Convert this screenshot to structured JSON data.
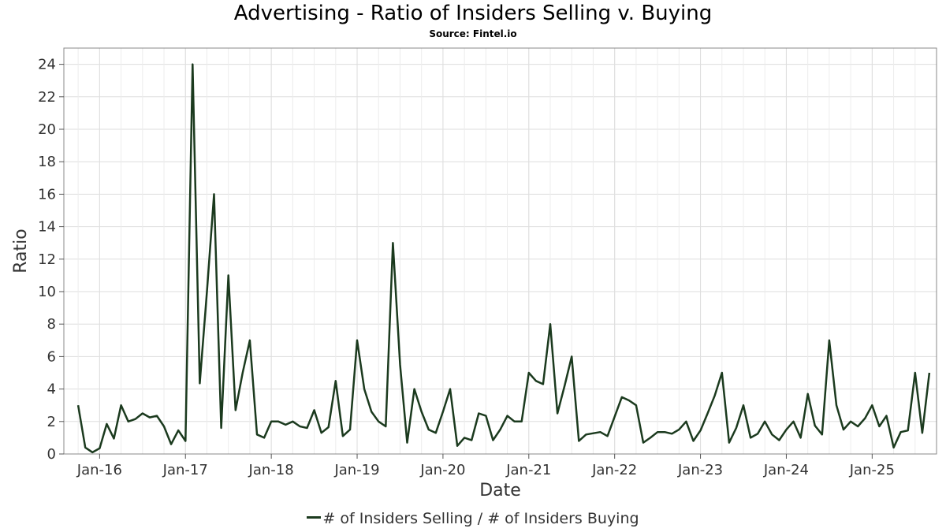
{
  "title": "Advertising - Ratio of Insiders Selling v. Buying",
  "subtitle": "Source: Fintel.io",
  "colors": {
    "line": "#1b3a1e",
    "grid": "#dddddd",
    "frame": "#888888"
  },
  "chart_data": {
    "type": "line",
    "xlabel": "Date",
    "ylabel": "Ratio",
    "x_tick_labels": [
      "Jan-16",
      "Jan-17",
      "Jan-18",
      "Jan-19",
      "Jan-20",
      "Jan-21",
      "Jan-22",
      "Jan-23",
      "Jan-24",
      "Jan-25"
    ],
    "x_ticks": [
      "2016-01",
      "2017-01",
      "2018-01",
      "2019-01",
      "2020-01",
      "2021-01",
      "2022-01",
      "2023-01",
      "2024-01",
      "2025-01"
    ],
    "y_ticks": [
      0,
      2,
      4,
      6,
      8,
      10,
      12,
      14,
      16,
      18,
      20,
      22,
      24
    ],
    "ylim": [
      0,
      25
    ],
    "xlim": [
      "2015-08",
      "2025-10"
    ],
    "grid": true,
    "legend_position": "bottom-center",
    "series": [
      {
        "name": "# of Insiders Selling / # of Insiders Buying",
        "points": [
          [
            "2015-10",
            3.0
          ],
          [
            "2015-11",
            0.4
          ],
          [
            "2015-12",
            0.1
          ],
          [
            "2016-01",
            0.35
          ],
          [
            "2016-02",
            1.85
          ],
          [
            "2016-03",
            0.95
          ],
          [
            "2016-04",
            3.0
          ],
          [
            "2016-05",
            2.0
          ],
          [
            "2016-06",
            2.15
          ],
          [
            "2016-07",
            2.5
          ],
          [
            "2016-08",
            2.25
          ],
          [
            "2016-09",
            2.35
          ],
          [
            "2016-10",
            1.7
          ],
          [
            "2016-11",
            0.6
          ],
          [
            "2016-12",
            1.45
          ],
          [
            "2017-01",
            0.8
          ],
          [
            "2017-02",
            24.0
          ],
          [
            "2017-03",
            4.35
          ],
          [
            "2017-04",
            10.0
          ],
          [
            "2017-05",
            16.0
          ],
          [
            "2017-06",
            1.6
          ],
          [
            "2017-07",
            11.0
          ],
          [
            "2017-08",
            2.7
          ],
          [
            "2017-09",
            5.0
          ],
          [
            "2017-10",
            7.0
          ],
          [
            "2017-11",
            1.2
          ],
          [
            "2017-12",
            1.0
          ],
          [
            "2018-01",
            2.0
          ],
          [
            "2018-02",
            2.0
          ],
          [
            "2018-03",
            1.8
          ],
          [
            "2018-04",
            2.0
          ],
          [
            "2018-05",
            1.7
          ],
          [
            "2018-06",
            1.6
          ],
          [
            "2018-07",
            2.7
          ],
          [
            "2018-08",
            1.3
          ],
          [
            "2018-09",
            1.65
          ],
          [
            "2018-10",
            4.5
          ],
          [
            "2018-11",
            1.1
          ],
          [
            "2018-12",
            1.5
          ],
          [
            "2019-01",
            7.0
          ],
          [
            "2019-02",
            4.0
          ],
          [
            "2019-03",
            2.6
          ],
          [
            "2019-04",
            2.0
          ],
          [
            "2019-05",
            1.7
          ],
          [
            "2019-06",
            13.0
          ],
          [
            "2019-07",
            5.5
          ],
          [
            "2019-08",
            0.7
          ],
          [
            "2019-09",
            4.0
          ],
          [
            "2019-10",
            2.6
          ],
          [
            "2019-11",
            1.5
          ],
          [
            "2019-12",
            1.3
          ],
          [
            "2020-01",
            2.6
          ],
          [
            "2020-02",
            4.0
          ],
          [
            "2020-03",
            0.5
          ],
          [
            "2020-04",
            1.0
          ],
          [
            "2020-05",
            0.85
          ],
          [
            "2020-06",
            2.5
          ],
          [
            "2020-07",
            2.35
          ],
          [
            "2020-08",
            0.85
          ],
          [
            "2020-09",
            1.5
          ],
          [
            "2020-10",
            2.35
          ],
          [
            "2020-11",
            2.0
          ],
          [
            "2020-12",
            2.0
          ],
          [
            "2021-01",
            5.0
          ],
          [
            "2021-02",
            4.5
          ],
          [
            "2021-03",
            4.3
          ],
          [
            "2021-04",
            8.0
          ],
          [
            "2021-05",
            2.5
          ],
          [
            "2021-06",
            4.2
          ],
          [
            "2021-07",
            6.0
          ],
          [
            "2021-08",
            0.8
          ],
          [
            "2021-09",
            1.2
          ],
          [
            "2021-11",
            1.35
          ],
          [
            "2021-12",
            1.1
          ],
          [
            "2022-02",
            3.5
          ],
          [
            "2022-03",
            3.3
          ],
          [
            "2022-04",
            3.0
          ],
          [
            "2022-05",
            0.7
          ],
          [
            "2022-06",
            1.0
          ],
          [
            "2022-07",
            1.35
          ],
          [
            "2022-08",
            1.35
          ],
          [
            "2022-09",
            1.25
          ],
          [
            "2022-10",
            1.5
          ],
          [
            "2022-11",
            2.0
          ],
          [
            "2022-12",
            0.8
          ],
          [
            "2023-01",
            1.45
          ],
          [
            "2023-02",
            2.5
          ],
          [
            "2023-03",
            3.6
          ],
          [
            "2023-04",
            5.0
          ],
          [
            "2023-05",
            0.7
          ],
          [
            "2023-06",
            1.6
          ],
          [
            "2023-07",
            3.0
          ],
          [
            "2023-08",
            1.0
          ],
          [
            "2023-09",
            1.25
          ],
          [
            "2023-10",
            2.0
          ],
          [
            "2023-11",
            1.2
          ],
          [
            "2023-12",
            0.85
          ],
          [
            "2024-01",
            1.5
          ],
          [
            "2024-02",
            2.0
          ],
          [
            "2024-03",
            1.0
          ],
          [
            "2024-04",
            3.7
          ],
          [
            "2024-05",
            1.75
          ],
          [
            "2024-06",
            1.2
          ],
          [
            "2024-07",
            7.0
          ],
          [
            "2024-08",
            3.0
          ],
          [
            "2024-09",
            1.5
          ],
          [
            "2024-10",
            2.0
          ],
          [
            "2024-11",
            1.7
          ],
          [
            "2024-12",
            2.2
          ],
          [
            "2025-01",
            3.0
          ],
          [
            "2025-02",
            1.7
          ],
          [
            "2025-03",
            2.35
          ],
          [
            "2025-04",
            0.4
          ],
          [
            "2025-05",
            1.35
          ],
          [
            "2025-06",
            1.45
          ],
          [
            "2025-07",
            5.0
          ],
          [
            "2025-08",
            1.3
          ],
          [
            "2025-09",
            5.0
          ]
        ]
      }
    ]
  }
}
